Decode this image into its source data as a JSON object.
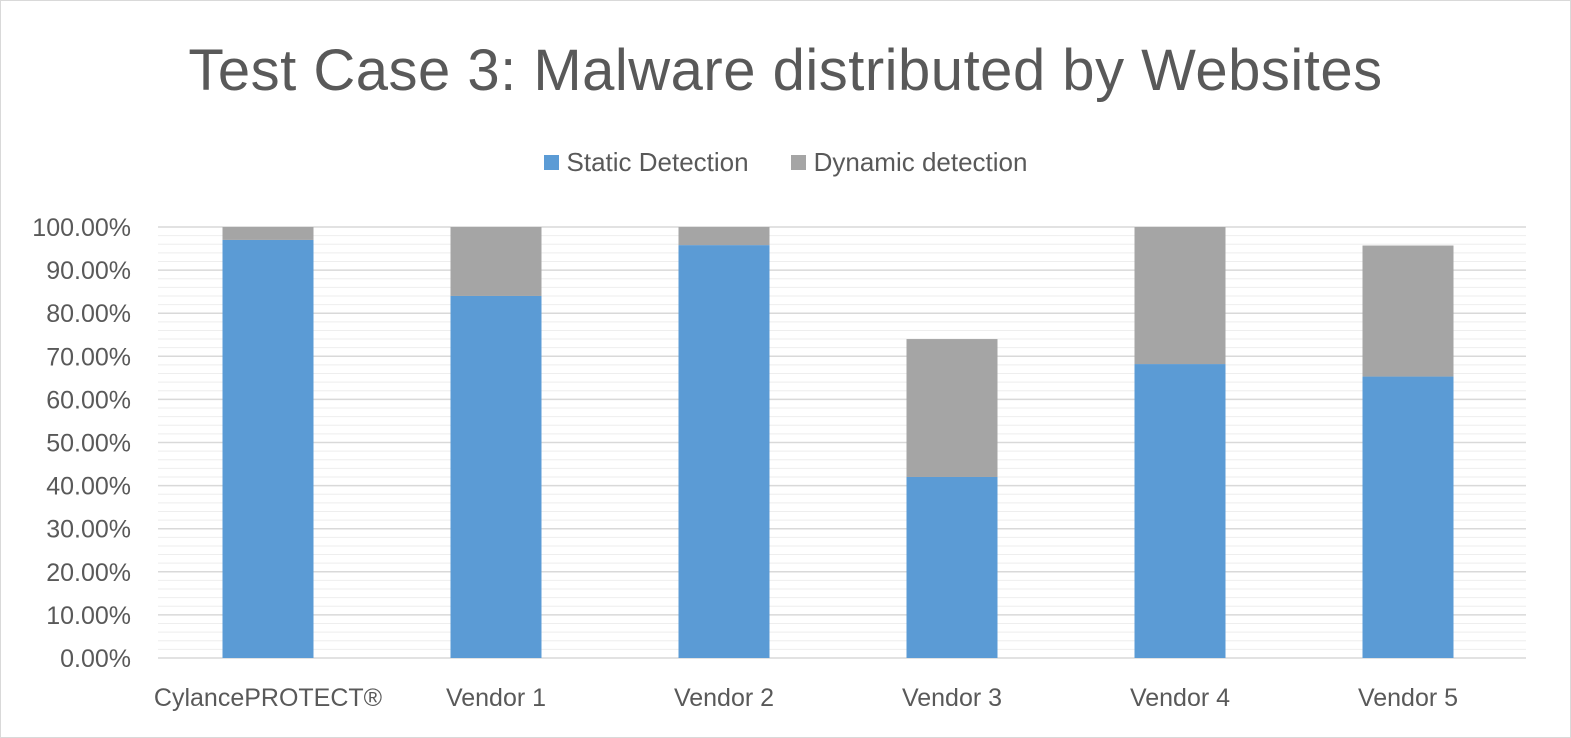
{
  "chart_data": {
    "type": "bar",
    "stacked": true,
    "title": "Test Case 3: Malware distributed by Websites",
    "xlabel": "",
    "ylabel": "",
    "categories": [
      "CylancePROTECT®",
      "Vendor 1",
      "Vendor 2",
      "Vendor 3",
      "Vendor 4",
      "Vendor 5"
    ],
    "series": [
      {
        "name": "Static Detection",
        "color": "#5b9bd5",
        "values": [
          97.0,
          84.0,
          95.8,
          42.0,
          68.2,
          65.3
        ]
      },
      {
        "name": "Dynamic detection",
        "color": "#a5a5a5",
        "values": [
          3.0,
          16.0,
          4.2,
          32.0,
          31.8,
          30.4
        ]
      }
    ],
    "ylim": [
      0,
      100
    ],
    "yticks": [
      "0.00%",
      "10.00%",
      "20.00%",
      "30.00%",
      "40.00%",
      "50.00%",
      "60.00%",
      "70.00%",
      "80.00%",
      "90.00%",
      "100.00%"
    ],
    "grid": true,
    "legend_position": "top"
  }
}
